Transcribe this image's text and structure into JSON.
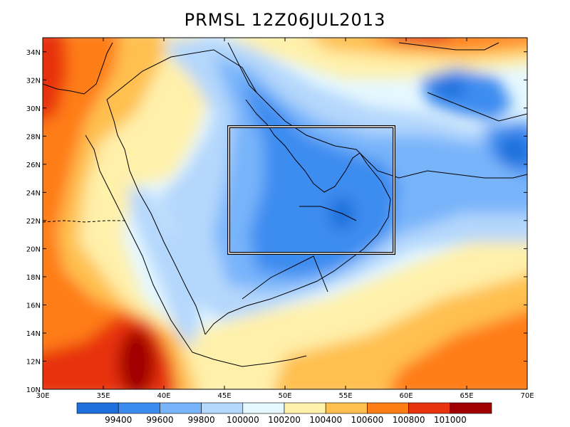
{
  "title": "PRMSL 12Z06JUL2013",
  "lon_ticks": [
    "30E",
    "35E",
    "40E",
    "45E",
    "50E",
    "55E",
    "60E",
    "65E",
    "70E"
  ],
  "lat_ticks": [
    "10N",
    "12N",
    "14N",
    "16N",
    "18N",
    "20N",
    "22N",
    "24N",
    "26N",
    "28N",
    "30N",
    "32N",
    "34N"
  ],
  "colorbar": {
    "labels": [
      "99400",
      "99600",
      "99800",
      "100000",
      "100200",
      "100400",
      "100600",
      "100800",
      "101000"
    ],
    "colors": [
      "#1e6fdc",
      "#3c8cf0",
      "#78b4fa",
      "#b4d7fc",
      "#e6f8ff",
      "#fff0aa",
      "#ffc050",
      "#ff7d15",
      "#e8330f",
      "#a00000"
    ]
  },
  "domain_box": {
    "lon_range": [
      46,
      59
    ],
    "lat_range": [
      20,
      28.7
    ]
  }
}
